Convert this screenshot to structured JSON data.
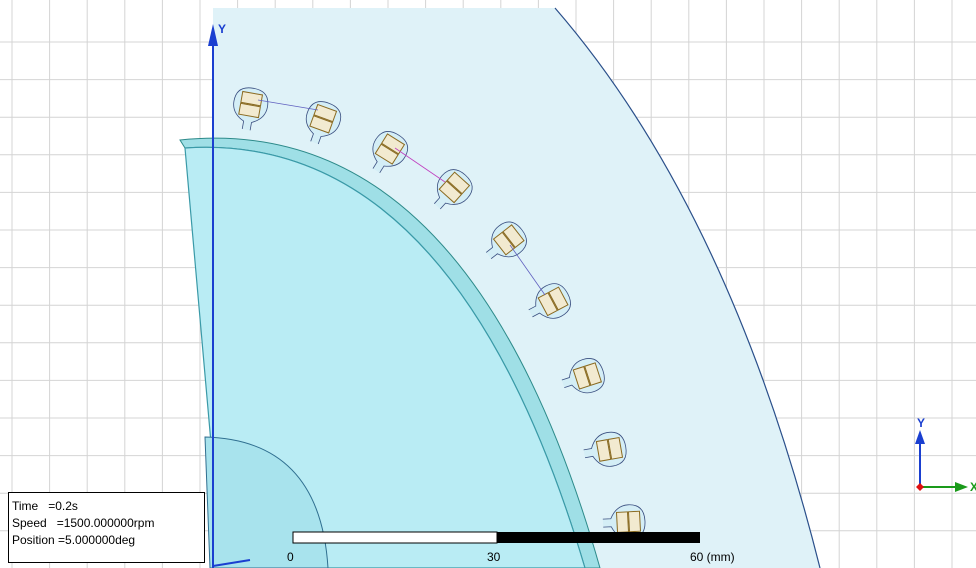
{
  "axis_label": "Y",
  "info": {
    "time": "Time   =0.2s",
    "speed": "Speed   =1500.000000rpm",
    "position": "Position =5.000000deg"
  },
  "scale": {
    "labels": [
      "0",
      "30",
      "60 (mm)"
    ]
  },
  "triad": {
    "y": "Y",
    "x": "X"
  }
}
